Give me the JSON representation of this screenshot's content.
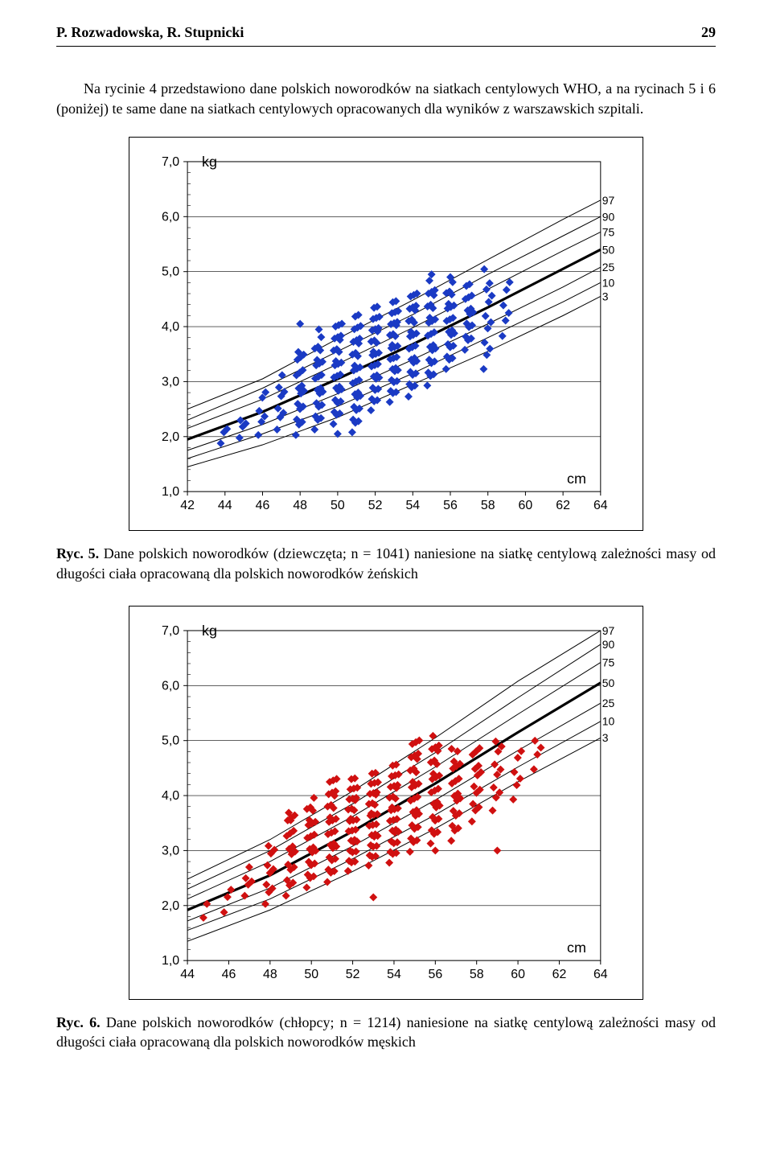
{
  "header": {
    "authors": "P. Rozwadowska, R. Stupnicki",
    "page": "29"
  },
  "paragraph": "Na rycinie 4 przedstawiono dane polskich noworodków na siatkach centylowych WHO, a na rycinach 5 i 6 (poniżej) te same dane na siatkach centylowych opracowanych dla wyników z warszawskich szpitali.",
  "caption5": {
    "label": "Ryc. 5.",
    "text": " Dane polskich noworodków (dziewczęta; n = 1041) naniesione na siatkę centylową zależności masy od długości ciała opracowaną dla polskich noworodków żeńskich"
  },
  "caption6": {
    "label": "Ryc. 6.",
    "text": " Dane polskich noworodków (chłopcy; n = 1214) naniesione na siatkę centylową zależności masy od długości ciała opracowaną dla polskich noworodków męskich"
  },
  "chart5": {
    "type": "scatter-percentile",
    "x_label": "cm",
    "y_label": "kg",
    "x_min": 42,
    "x_max": 64,
    "x_tick_step": 2,
    "y_min": 1.0,
    "y_max": 7.0,
    "y_tick_step": 1.0,
    "x_ticks": [
      42,
      44,
      46,
      48,
      50,
      52,
      54,
      56,
      58,
      60,
      62,
      64
    ],
    "y_ticks": [
      "1,0",
      "2,0",
      "3,0",
      "4,0",
      "5,0",
      "6,0",
      "7,0"
    ],
    "percentile_labels": [
      "97",
      "90",
      "75",
      "50",
      "25",
      "10",
      "3"
    ],
    "marker_color": "#1a3ac4",
    "marker_size": 5,
    "grid_color": "#000000",
    "bg": "#ffffff",
    "axis_fontsize": 16,
    "percentiles": {
      "3": [
        [
          42,
          1.45
        ],
        [
          46,
          1.85
        ],
        [
          50,
          2.35
        ],
        [
          54,
          2.95
        ],
        [
          58,
          3.55
        ],
        [
          62,
          4.2
        ],
        [
          64,
          4.55
        ]
      ],
      "10": [
        [
          42,
          1.6
        ],
        [
          46,
          2.05
        ],
        [
          50,
          2.55
        ],
        [
          54,
          3.15
        ],
        [
          58,
          3.8
        ],
        [
          62,
          4.45
        ],
        [
          64,
          4.8
        ]
      ],
      "25": [
        [
          42,
          1.75
        ],
        [
          46,
          2.22
        ],
        [
          50,
          2.78
        ],
        [
          54,
          3.4
        ],
        [
          58,
          4.05
        ],
        [
          62,
          4.72
        ],
        [
          64,
          5.08
        ]
      ],
      "50": [
        [
          42,
          1.95
        ],
        [
          46,
          2.45
        ],
        [
          50,
          3.05
        ],
        [
          54,
          3.68
        ],
        [
          58,
          4.35
        ],
        [
          62,
          5.05
        ],
        [
          64,
          5.4
        ]
      ],
      "75": [
        [
          42,
          2.15
        ],
        [
          46,
          2.68
        ],
        [
          50,
          3.32
        ],
        [
          54,
          3.98
        ],
        [
          58,
          4.68
        ],
        [
          62,
          5.38
        ],
        [
          64,
          5.72
        ]
      ],
      "90": [
        [
          42,
          2.3
        ],
        [
          46,
          2.88
        ],
        [
          50,
          3.55
        ],
        [
          54,
          4.22
        ],
        [
          58,
          4.95
        ],
        [
          62,
          5.65
        ],
        [
          64,
          6.0
        ]
      ],
      "97": [
        [
          42,
          2.5
        ],
        [
          46,
          3.05
        ],
        [
          50,
          3.78
        ],
        [
          54,
          4.48
        ],
        [
          58,
          5.22
        ],
        [
          62,
          5.95
        ],
        [
          64,
          6.3
        ]
      ]
    },
    "scatter_cols": [
      {
        "x": 44,
        "y0": 1.95,
        "y1": 2.15,
        "n": 3
      },
      {
        "x": 45,
        "y0": 2.05,
        "y1": 2.35,
        "n": 4
      },
      {
        "x": 46,
        "y0": 2.1,
        "y1": 2.8,
        "n": 6
      },
      {
        "x": 47,
        "y0": 2.2,
        "y1": 3.05,
        "n": 8
      },
      {
        "x": 48,
        "y0": 2.1,
        "y1": 3.6,
        "n": 18
      },
      {
        "x": 49,
        "y0": 2.2,
        "y1": 3.75,
        "n": 22
      },
      {
        "x": 50,
        "y0": 2.3,
        "y1": 4.1,
        "n": 28
      },
      {
        "x": 51,
        "y0": 2.15,
        "y1": 4.2,
        "n": 30
      },
      {
        "x": 52,
        "y0": 2.55,
        "y1": 4.35,
        "n": 30
      },
      {
        "x": 53,
        "y0": 2.7,
        "y1": 4.45,
        "n": 30
      },
      {
        "x": 54,
        "y0": 2.8,
        "y1": 4.65,
        "n": 28
      },
      {
        "x": 55,
        "y0": 3.0,
        "y1": 4.8,
        "n": 26
      },
      {
        "x": 56,
        "y0": 3.3,
        "y1": 4.75,
        "n": 22
      },
      {
        "x": 57,
        "y0": 3.65,
        "y1": 4.75,
        "n": 16
      },
      {
        "x": 58,
        "y0": 3.3,
        "y1": 5.0,
        "n": 12
      },
      {
        "x": 59,
        "y0": 3.9,
        "y1": 4.8,
        "n": 6
      }
    ],
    "outliers": [
      [
        49,
        3.95
      ],
      [
        50,
        2.05
      ],
      [
        55,
        4.95
      ],
      [
        56,
        4.9
      ],
      [
        48,
        4.05
      ]
    ]
  },
  "chart6": {
    "type": "scatter-percentile",
    "x_label": "cm",
    "y_label": "kg",
    "x_min": 44,
    "x_max": 64,
    "x_tick_step": 2,
    "y_min": 1.0,
    "y_max": 7.0,
    "y_tick_step": 1.0,
    "x_ticks": [
      44,
      46,
      48,
      50,
      52,
      54,
      56,
      58,
      60,
      62,
      64
    ],
    "y_ticks": [
      "1,0",
      "2,0",
      "3,0",
      "4,0",
      "5,0",
      "6,0",
      "7,0"
    ],
    "percentile_labels": [
      "97",
      "90",
      "75",
      "50",
      "25",
      "10",
      "3"
    ],
    "marker_color": "#d01010",
    "marker_size": 5,
    "grid_color": "#000000",
    "bg": "#ffffff",
    "axis_fontsize": 16,
    "percentiles": {
      "3": [
        [
          44,
          1.35
        ],
        [
          48,
          1.92
        ],
        [
          52,
          2.62
        ],
        [
          56,
          3.4
        ],
        [
          60,
          4.25
        ],
        [
          64,
          5.05
        ]
      ],
      "10": [
        [
          44,
          1.55
        ],
        [
          48,
          2.12
        ],
        [
          52,
          2.85
        ],
        [
          56,
          3.65
        ],
        [
          60,
          4.52
        ],
        [
          64,
          5.35
        ]
      ],
      "25": [
        [
          44,
          1.72
        ],
        [
          48,
          2.32
        ],
        [
          52,
          3.08
        ],
        [
          56,
          3.92
        ],
        [
          60,
          4.82
        ],
        [
          64,
          5.68
        ]
      ],
      "50": [
        [
          44,
          1.92
        ],
        [
          48,
          2.55
        ],
        [
          52,
          3.35
        ],
        [
          56,
          4.22
        ],
        [
          60,
          5.15
        ],
        [
          64,
          6.05
        ]
      ],
      "75": [
        [
          44,
          2.12
        ],
        [
          48,
          2.8
        ],
        [
          52,
          3.62
        ],
        [
          56,
          4.52
        ],
        [
          60,
          5.48
        ],
        [
          64,
          6.42
        ]
      ],
      "90": [
        [
          44,
          2.3
        ],
        [
          48,
          3.0
        ],
        [
          52,
          3.85
        ],
        [
          56,
          4.78
        ],
        [
          60,
          5.78
        ],
        [
          64,
          6.75
        ]
      ],
      "97": [
        [
          44,
          2.48
        ],
        [
          48,
          3.2
        ],
        [
          52,
          4.08
        ],
        [
          56,
          5.05
        ],
        [
          60,
          6.08
        ],
        [
          64,
          7.0
        ]
      ]
    },
    "scatter_cols": [
      {
        "x": 45,
        "y0": 1.85,
        "y1": 2.0,
        "n": 2
      },
      {
        "x": 46,
        "y0": 1.95,
        "y1": 2.3,
        "n": 3
      },
      {
        "x": 47,
        "y0": 2.25,
        "y1": 2.65,
        "n": 5
      },
      {
        "x": 48,
        "y0": 2.1,
        "y1": 3.1,
        "n": 10
      },
      {
        "x": 49,
        "y0": 2.25,
        "y1": 3.75,
        "n": 18
      },
      {
        "x": 50,
        "y0": 2.4,
        "y1": 3.9,
        "n": 22
      },
      {
        "x": 51,
        "y0": 2.5,
        "y1": 4.35,
        "n": 28
      },
      {
        "x": 52,
        "y0": 2.7,
        "y1": 4.3,
        "n": 30
      },
      {
        "x": 53,
        "y0": 2.8,
        "y1": 4.4,
        "n": 30
      },
      {
        "x": 54,
        "y0": 2.85,
        "y1": 4.55,
        "n": 30
      },
      {
        "x": 55,
        "y0": 3.05,
        "y1": 5.05,
        "n": 28
      },
      {
        "x": 56,
        "y0": 3.2,
        "y1": 5.05,
        "n": 26
      },
      {
        "x": 57,
        "y0": 3.25,
        "y1": 4.85,
        "n": 20
      },
      {
        "x": 58,
        "y0": 3.6,
        "y1": 4.9,
        "n": 14
      },
      {
        "x": 59,
        "y0": 3.8,
        "y1": 5.0,
        "n": 10
      },
      {
        "x": 60,
        "y0": 4.0,
        "y1": 4.8,
        "n": 6
      },
      {
        "x": 61,
        "y0": 4.55,
        "y1": 5.05,
        "n": 4
      }
    ],
    "outliers": [
      [
        53,
        2.15
      ],
      [
        56,
        3.0
      ],
      [
        59,
        3.0
      ],
      [
        49,
        3.55
      ]
    ]
  }
}
